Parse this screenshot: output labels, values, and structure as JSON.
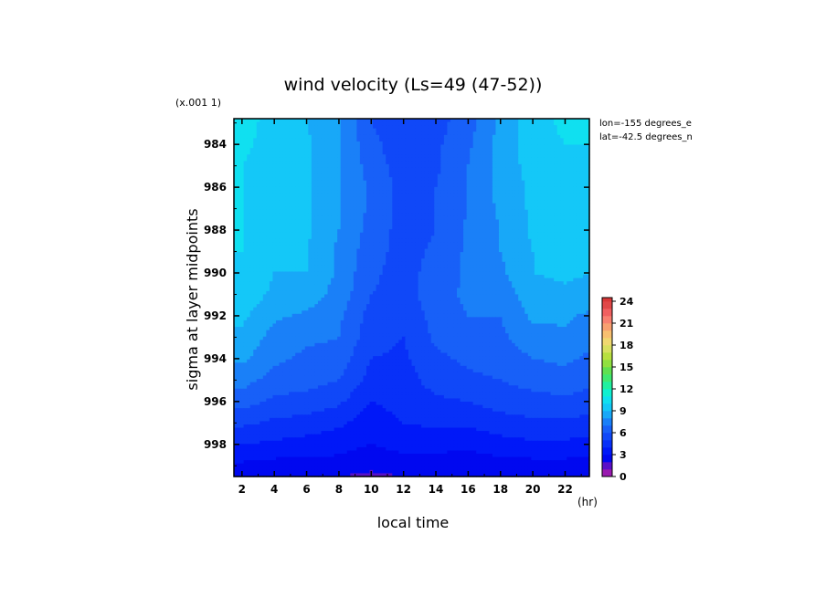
{
  "chart_data": {
    "type": "heatmap",
    "title": "wind velocity (Ls=49 (47-52))",
    "xlabel": "local time",
    "ylabel": "sigma at layer midpoints",
    "x_unit": "(hr)",
    "y_scale_note": "(x.001 1)",
    "annotations": [
      "lon=-155 degrees_e",
      "lat=-42.5 degrees_n"
    ],
    "xlim": [
      1.5,
      23.5
    ],
    "ylim": [
      999.5,
      982.8
    ],
    "x_ticks": [
      2,
      4,
      6,
      8,
      10,
      12,
      14,
      16,
      18,
      20,
      22
    ],
    "y_ticks": [
      984,
      986,
      988,
      990,
      992,
      994,
      996,
      998
    ],
    "colorbar": {
      "ticks": [
        0,
        3,
        6,
        9,
        12,
        15,
        18,
        21,
        24
      ],
      "range": [
        0,
        24.5
      ],
      "levels": [
        0,
        1,
        2,
        3,
        4,
        5,
        6,
        7,
        8,
        9,
        10,
        11,
        12,
        13,
        14,
        15,
        16,
        17,
        18,
        19,
        20,
        21,
        22,
        23,
        24
      ],
      "colors": [
        "#9a1ab0",
        "#5a10c8",
        "#0008f0",
        "#0018f8",
        "#0830f8",
        "#1048f8",
        "#1860f8",
        "#1a80f8",
        "#18a8f8",
        "#14c8f8",
        "#10e0f0",
        "#10f0d0",
        "#20f0a0",
        "#40e870",
        "#60e050",
        "#90e040",
        "#b8e040",
        "#d8e060",
        "#f0d870",
        "#f8c070",
        "#f8a070",
        "#f88070",
        "#f06060",
        "#e04848",
        "#d83838"
      ]
    },
    "x": [
      1.5,
      2,
      4,
      6,
      8,
      10,
      12,
      14,
      16,
      18,
      20,
      22,
      23.5
    ],
    "y": [
      983,
      984,
      985,
      986,
      987,
      988,
      989,
      990,
      991,
      992,
      993,
      994,
      995,
      996,
      997,
      998,
      999,
      999.5
    ],
    "z": [
      [
        10.4,
        10.4,
        9.6,
        9.0,
        8.0,
        6.0,
        5.0,
        5.6,
        6.6,
        8.2,
        9.6,
        10.2,
        10.4
      ],
      [
        10.2,
        10.2,
        9.6,
        9.2,
        8.0,
        6.4,
        5.2,
        5.8,
        6.8,
        8.4,
        9.6,
        10.0,
        10.0
      ],
      [
        10.0,
        10.0,
        9.4,
        9.2,
        8.0,
        6.6,
        5.4,
        5.8,
        7.0,
        8.4,
        9.4,
        9.8,
        9.8
      ],
      [
        10.0,
        10.0,
        9.4,
        9.2,
        8.0,
        6.8,
        5.6,
        6.0,
        7.0,
        8.4,
        9.2,
        9.6,
        9.6
      ],
      [
        10.0,
        10.0,
        9.2,
        9.2,
        8.0,
        6.8,
        5.6,
        6.0,
        7.0,
        8.2,
        9.2,
        9.6,
        9.4
      ],
      [
        10.0,
        10.0,
        9.2,
        9.2,
        8.0,
        6.6,
        5.6,
        6.0,
        7.2,
        8.0,
        9.2,
        9.6,
        9.4
      ],
      [
        10.0,
        10.0,
        9.2,
        9.0,
        7.8,
        6.4,
        5.6,
        6.2,
        7.2,
        8.0,
        9.0,
        9.4,
        9.2
      ],
      [
        9.8,
        9.8,
        9.0,
        9.0,
        7.8,
        6.2,
        5.6,
        6.4,
        7.2,
        7.8,
        9.0,
        9.2,
        9.0
      ],
      [
        9.6,
        9.6,
        8.8,
        8.6,
        7.6,
        6.0,
        5.6,
        6.6,
        7.2,
        7.4,
        8.6,
        8.8,
        8.6
      ],
      [
        9.2,
        9.2,
        8.2,
        7.8,
        7.2,
        5.6,
        5.2,
        6.4,
        7.0,
        7.0,
        8.2,
        8.2,
        7.8
      ],
      [
        8.8,
        8.8,
        7.6,
        7.2,
        7.0,
        5.4,
        5.0,
        6.2,
        6.6,
        6.8,
        7.6,
        7.8,
        7.4
      ],
      [
        8.2,
        8.2,
        7.2,
        6.8,
        6.6,
        5.0,
        4.8,
        5.8,
        6.2,
        6.4,
        7.0,
        7.2,
        6.8
      ],
      [
        7.4,
        7.4,
        6.6,
        6.4,
        6.0,
        4.6,
        4.6,
        5.4,
        5.8,
        6.0,
        6.4,
        6.6,
        6.2
      ],
      [
        6.4,
        6.4,
        5.8,
        5.6,
        5.2,
        4.0,
        4.4,
        4.8,
        5.0,
        5.4,
        5.6,
        5.8,
        5.6
      ],
      [
        5.2,
        5.2,
        4.8,
        4.6,
        4.2,
        3.4,
        4.0,
        4.2,
        4.2,
        4.6,
        4.8,
        4.8,
        4.6
      ],
      [
        4.0,
        4.0,
        3.8,
        3.6,
        3.4,
        3.0,
        3.4,
        3.4,
        3.2,
        3.6,
        3.8,
        3.8,
        3.6
      ],
      [
        2.8,
        2.8,
        2.6,
        2.6,
        2.6,
        2.2,
        2.4,
        2.4,
        2.4,
        2.6,
        2.6,
        2.6,
        2.6
      ],
      [
        2.2,
        2.2,
        2.0,
        2.0,
        2.0,
        1.8,
        2.0,
        2.0,
        2.0,
        2.0,
        2.0,
        2.2,
        2.2
      ]
    ]
  }
}
